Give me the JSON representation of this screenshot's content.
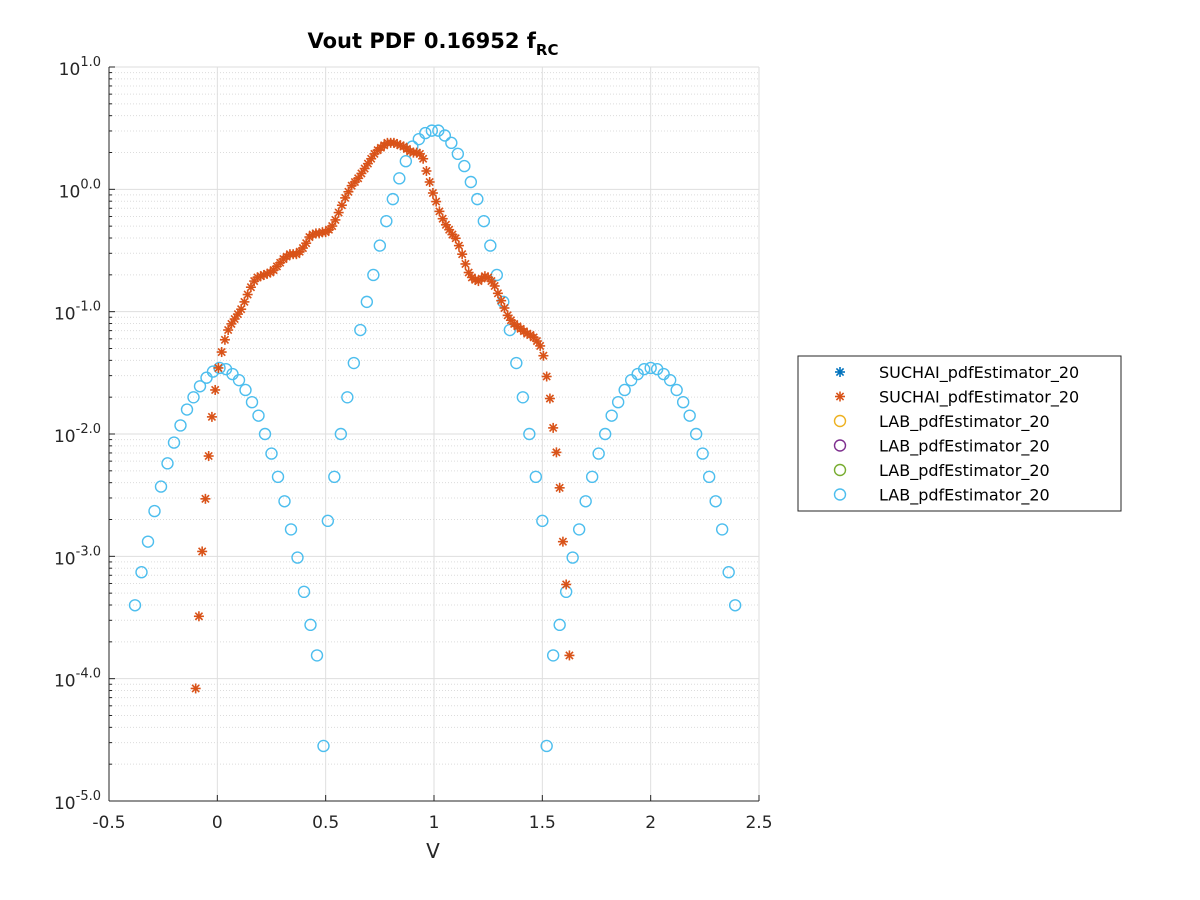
{
  "chart_data": {
    "type": "scatter",
    "title": "Vout PDF 0.16952 f",
    "title_subscript": "RC",
    "xlabel": "V",
    "ylabel": "",
    "xlim": [
      -0.5,
      2.5
    ],
    "ylim_log10": [
      -5,
      1
    ],
    "y_scale": "log",
    "grid": true,
    "minor_grid": true,
    "legend_placement": "outside-right",
    "x_ticks": [
      -0.5,
      0,
      0.5,
      1,
      1.5,
      2,
      2.5
    ],
    "x_tick_labels": [
      "-0.5",
      "0",
      "0.5",
      "1",
      "1.5",
      "2",
      "2.5"
    ],
    "y_ticks_log10": [
      -5,
      -4,
      -3,
      -2,
      -1,
      0,
      1
    ],
    "y_tick_base": "10",
    "y_tick_exponents": [
      "-5.0",
      "-4.0",
      "-3.0",
      "-2.0",
      "-1.0",
      "0.0",
      "1.0"
    ],
    "series": [
      {
        "name": "SUCHAI_pdfEstimator_20",
        "marker": "asterisk",
        "color": "#0072BD",
        "points": []
      },
      {
        "name": "SUCHAI_pdfEstimator_20",
        "marker": "asterisk",
        "color": "#D95319",
        "points": [
          [
            -0.1,
            -4.08
          ],
          [
            -0.085,
            -3.49
          ],
          [
            -0.07,
            -2.96
          ],
          [
            -0.055,
            -2.53
          ],
          [
            -0.04,
            -2.18
          ],
          [
            -0.025,
            -1.86
          ],
          [
            -0.01,
            -1.64
          ],
          [
            0.005,
            -1.46
          ],
          [
            0.02,
            -1.33
          ],
          [
            0.035,
            -1.23
          ],
          [
            0.05,
            -1.15
          ],
          [
            0.065,
            -1.1
          ],
          [
            0.08,
            -1.06
          ],
          [
            0.095,
            -1.02
          ],
          [
            0.11,
            -0.98
          ],
          [
            0.125,
            -0.92
          ],
          [
            0.14,
            -0.86
          ],
          [
            0.155,
            -0.8
          ],
          [
            0.17,
            -0.75
          ],
          [
            0.185,
            -0.72
          ],
          [
            0.2,
            -0.71
          ],
          [
            0.215,
            -0.7
          ],
          [
            0.23,
            -0.69
          ],
          [
            0.245,
            -0.68
          ],
          [
            0.26,
            -0.66
          ],
          [
            0.275,
            -0.63
          ],
          [
            0.29,
            -0.6
          ],
          [
            0.305,
            -0.57
          ],
          [
            0.32,
            -0.55
          ],
          [
            0.335,
            -0.53
          ],
          [
            0.35,
            -0.53
          ],
          [
            0.365,
            -0.53
          ],
          [
            0.38,
            -0.51
          ],
          [
            0.395,
            -0.48
          ],
          [
            0.41,
            -0.44
          ],
          [
            0.425,
            -0.39
          ],
          [
            0.44,
            -0.37
          ],
          [
            0.455,
            -0.36
          ],
          [
            0.47,
            -0.36
          ],
          [
            0.485,
            -0.35
          ],
          [
            0.5,
            -0.35
          ],
          [
            0.515,
            -0.33
          ],
          [
            0.53,
            -0.3
          ],
          [
            0.545,
            -0.25
          ],
          [
            0.56,
            -0.19
          ],
          [
            0.575,
            -0.13
          ],
          [
            0.59,
            -0.07
          ],
          [
            0.605,
            -0.02
          ],
          [
            0.62,
            0.03
          ],
          [
            0.635,
            0.06
          ],
          [
            0.65,
            0.09
          ],
          [
            0.665,
            0.13
          ],
          [
            0.68,
            0.17
          ],
          [
            0.695,
            0.21
          ],
          [
            0.71,
            0.25
          ],
          [
            0.725,
            0.29
          ],
          [
            0.74,
            0.32
          ],
          [
            0.755,
            0.34
          ],
          [
            0.77,
            0.36
          ],
          [
            0.785,
            0.38
          ],
          [
            0.8,
            0.38
          ],
          [
            0.815,
            0.38
          ],
          [
            0.83,
            0.37
          ],
          [
            0.845,
            0.36
          ],
          [
            0.86,
            0.35
          ],
          [
            0.875,
            0.33
          ],
          [
            0.89,
            0.31
          ],
          [
            0.905,
            0.3
          ],
          [
            0.92,
            0.3
          ],
          [
            0.935,
            0.29
          ],
          [
            0.95,
            0.25
          ],
          [
            0.965,
            0.15
          ],
          [
            0.98,
            0.06
          ],
          [
            0.995,
            -0.03
          ],
          [
            1.01,
            -0.1
          ],
          [
            1.025,
            -0.18
          ],
          [
            1.04,
            -0.24
          ],
          [
            1.055,
            -0.29
          ],
          [
            1.07,
            -0.33
          ],
          [
            1.085,
            -0.37
          ],
          [
            1.1,
            -0.4
          ],
          [
            1.115,
            -0.46
          ],
          [
            1.13,
            -0.53
          ],
          [
            1.145,
            -0.61
          ],
          [
            1.16,
            -0.68
          ],
          [
            1.175,
            -0.72
          ],
          [
            1.19,
            -0.74
          ],
          [
            1.205,
            -0.75
          ],
          [
            1.22,
            -0.73
          ],
          [
            1.235,
            -0.71
          ],
          [
            1.25,
            -0.72
          ],
          [
            1.265,
            -0.75
          ],
          [
            1.28,
            -0.79
          ],
          [
            1.295,
            -0.85
          ],
          [
            1.31,
            -0.91
          ],
          [
            1.325,
            -0.97
          ],
          [
            1.34,
            -1.03
          ],
          [
            1.355,
            -1.07
          ],
          [
            1.37,
            -1.1
          ],
          [
            1.385,
            -1.12
          ],
          [
            1.4,
            -1.14
          ],
          [
            1.415,
            -1.16
          ],
          [
            1.43,
            -1.18
          ],
          [
            1.445,
            -1.19
          ],
          [
            1.46,
            -1.21
          ],
          [
            1.475,
            -1.24
          ],
          [
            1.49,
            -1.28
          ],
          [
            1.505,
            -1.36
          ],
          [
            1.52,
            -1.53
          ],
          [
            1.535,
            -1.71
          ],
          [
            1.55,
            -1.95
          ],
          [
            1.565,
            -2.15
          ],
          [
            1.58,
            -2.44
          ],
          [
            1.595,
            -2.88
          ],
          [
            1.61,
            -3.23
          ],
          [
            1.625,
            -3.81
          ]
        ]
      },
      {
        "name": "LAB_pdfEstimator_20",
        "marker": "circle",
        "color": "#EDB120",
        "points": []
      },
      {
        "name": "LAB_pdfEstimator_20",
        "marker": "circle",
        "color": "#7E2F8E",
        "points": []
      },
      {
        "name": "LAB_pdfEstimator_20",
        "marker": "circle",
        "color": "#77AC30",
        "points": []
      },
      {
        "name": "LAB_pdfEstimator_20",
        "marker": "circle",
        "color": "#4DBEEE",
        "points": [
          [
            -0.38,
            -3.4
          ],
          [
            -0.35,
            -3.13
          ],
          [
            -0.32,
            -2.88
          ],
          [
            -0.29,
            -2.63
          ],
          [
            -0.26,
            -2.43
          ],
          [
            -0.23,
            -2.24
          ],
          [
            -0.2,
            -2.07
          ],
          [
            -0.17,
            -1.93
          ],
          [
            -0.14,
            -1.8
          ],
          [
            -0.11,
            -1.7
          ],
          [
            -0.08,
            -1.61
          ],
          [
            -0.05,
            -1.54
          ],
          [
            -0.02,
            -1.49
          ],
          [
            0.01,
            -1.46
          ],
          [
            0.04,
            -1.47
          ],
          [
            0.07,
            -1.51
          ],
          [
            0.1,
            -1.56
          ],
          [
            0.13,
            -1.64
          ],
          [
            0.16,
            -1.74
          ],
          [
            0.19,
            -1.85
          ],
          [
            0.22,
            -2.0
          ],
          [
            0.25,
            -2.16
          ],
          [
            0.28,
            -2.35
          ],
          [
            0.31,
            -2.55
          ],
          [
            0.34,
            -2.78
          ],
          [
            0.37,
            -3.01
          ],
          [
            0.4,
            -3.29
          ],
          [
            0.43,
            -3.56
          ],
          [
            0.46,
            -3.81
          ],
          [
            0.49,
            -4.55
          ],
          [
            0.51,
            -2.71
          ],
          [
            0.54,
            -2.35
          ],
          [
            0.57,
            -2.0
          ],
          [
            0.6,
            -1.7
          ],
          [
            0.63,
            -1.42
          ],
          [
            0.66,
            -1.15
          ],
          [
            0.69,
            -0.92
          ],
          [
            0.72,
            -0.7
          ],
          [
            0.75,
            -0.46
          ],
          [
            0.78,
            -0.26
          ],
          [
            0.81,
            -0.08
          ],
          [
            0.84,
            0.09
          ],
          [
            0.87,
            0.23
          ],
          [
            0.9,
            0.35
          ],
          [
            0.93,
            0.41
          ],
          [
            0.96,
            0.46
          ],
          [
            0.99,
            0.48
          ],
          [
            1.02,
            0.48
          ],
          [
            1.05,
            0.44
          ],
          [
            1.08,
            0.38
          ],
          [
            1.11,
            0.29
          ],
          [
            1.14,
            0.19
          ],
          [
            1.17,
            0.06
          ],
          [
            1.2,
            -0.08
          ],
          [
            1.23,
            -0.26
          ],
          [
            1.26,
            -0.46
          ],
          [
            1.29,
            -0.7
          ],
          [
            1.32,
            -0.92
          ],
          [
            1.35,
            -1.15
          ],
          [
            1.38,
            -1.42
          ],
          [
            1.41,
            -1.7
          ],
          [
            1.44,
            -2.0
          ],
          [
            1.47,
            -2.35
          ],
          [
            1.5,
            -2.71
          ],
          [
            1.52,
            -4.55
          ],
          [
            1.55,
            -3.81
          ],
          [
            1.58,
            -3.56
          ],
          [
            1.61,
            -3.29
          ],
          [
            1.64,
            -3.01
          ],
          [
            1.67,
            -2.78
          ],
          [
            1.7,
            -2.55
          ],
          [
            1.73,
            -2.35
          ],
          [
            1.76,
            -2.16
          ],
          [
            1.79,
            -2.0
          ],
          [
            1.82,
            -1.85
          ],
          [
            1.85,
            -1.74
          ],
          [
            1.88,
            -1.64
          ],
          [
            1.91,
            -1.56
          ],
          [
            1.94,
            -1.51
          ],
          [
            1.97,
            -1.47
          ],
          [
            2.0,
            -1.46
          ],
          [
            2.03,
            -1.47
          ],
          [
            2.06,
            -1.51
          ],
          [
            2.09,
            -1.56
          ],
          [
            2.12,
            -1.64
          ],
          [
            2.15,
            -1.74
          ],
          [
            2.18,
            -1.85
          ],
          [
            2.21,
            -2.0
          ],
          [
            2.24,
            -2.16
          ],
          [
            2.27,
            -2.35
          ],
          [
            2.3,
            -2.55
          ],
          [
            2.33,
            -2.78
          ],
          [
            2.36,
            -3.13
          ],
          [
            2.39,
            -3.4
          ]
        ]
      }
    ]
  }
}
